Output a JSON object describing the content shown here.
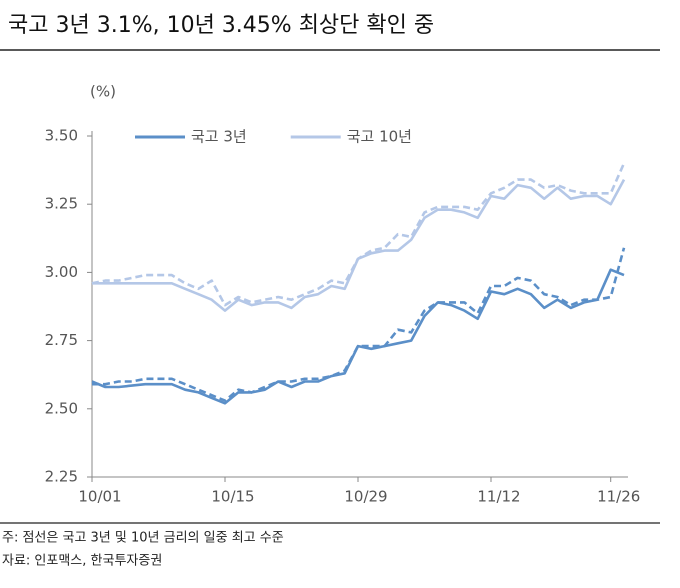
{
  "chart_data": {
    "type": "line",
    "title": "국고 3년 3.1%, 10년 3.45% 최상단 확인 중",
    "y_unit": "(%)",
    "categories": [
      "10/01",
      null,
      null,
      null,
      null,
      null,
      null,
      null,
      null,
      null,
      "10/15",
      null,
      null,
      null,
      null,
      null,
      null,
      null,
      null,
      null,
      "10/29",
      null,
      null,
      null,
      null,
      null,
      null,
      null,
      null,
      null,
      "11/12",
      null,
      null,
      null,
      null,
      null,
      null,
      null,
      null,
      "11/26",
      null
    ],
    "series": [
      {
        "name": "국고 3년",
        "color": "#5b8fc8",
        "dashed": false,
        "values": [
          2.6,
          2.58,
          2.58,
          2.585,
          2.59,
          2.59,
          2.59,
          2.57,
          2.56,
          2.54,
          2.52,
          2.56,
          2.56,
          2.57,
          2.6,
          2.58,
          2.6,
          2.6,
          2.62,
          2.63,
          2.73,
          2.72,
          2.73,
          2.74,
          2.75,
          2.84,
          2.89,
          2.88,
          2.86,
          2.83,
          2.93,
          2.92,
          2.94,
          2.92,
          2.87,
          2.9,
          2.87,
          2.89,
          2.9,
          3.01,
          2.99
        ]
      },
      {
        "name": "국고 10년",
        "color": "#b4c7e7",
        "dashed": false,
        "values": [
          2.96,
          2.96,
          2.96,
          2.96,
          2.96,
          2.96,
          2.96,
          2.94,
          2.92,
          2.9,
          2.86,
          2.9,
          2.88,
          2.89,
          2.89,
          2.87,
          2.91,
          2.92,
          2.95,
          2.94,
          3.05,
          3.07,
          3.08,
          3.08,
          3.12,
          3.2,
          3.23,
          3.23,
          3.22,
          3.2,
          3.28,
          3.27,
          3.32,
          3.31,
          3.27,
          3.31,
          3.27,
          3.28,
          3.28,
          3.25,
          3.34
        ]
      },
      {
        "color": "#5b8fc8",
        "dashed": true,
        "values": [
          2.59,
          2.59,
          2.6,
          2.6,
          2.61,
          2.61,
          2.61,
          2.59,
          2.57,
          2.55,
          2.53,
          2.57,
          2.56,
          2.58,
          2.6,
          2.6,
          2.61,
          2.61,
          2.62,
          2.64,
          2.73,
          2.73,
          2.73,
          2.79,
          2.78,
          2.86,
          2.89,
          2.89,
          2.89,
          2.85,
          2.95,
          2.95,
          2.98,
          2.97,
          2.92,
          2.91,
          2.88,
          2.9,
          2.9,
          2.91,
          3.09
        ]
      },
      {
        "color": "#b4c7e7",
        "dashed": true,
        "values": [
          2.96,
          2.97,
          2.97,
          2.98,
          2.99,
          2.99,
          2.99,
          2.96,
          2.94,
          2.97,
          2.88,
          2.91,
          2.89,
          2.9,
          2.91,
          2.9,
          2.92,
          2.94,
          2.97,
          2.96,
          3.05,
          3.08,
          3.09,
          3.14,
          3.13,
          3.22,
          3.24,
          3.24,
          3.24,
          3.23,
          3.29,
          3.31,
          3.34,
          3.34,
          3.31,
          3.32,
          3.3,
          3.29,
          3.29,
          3.29,
          3.4
        ]
      }
    ],
    "ylim": [
      2.25,
      3.5
    ],
    "yticks": [
      2.25,
      {
        "value": 2.5,
        "label": "2.50"
      },
      2.75,
      {
        "value": 3.0,
        "label": "3.00"
      },
      3.25,
      {
        "value": 3.5,
        "label": "3.50"
      }
    ],
    "notes": [
      "주: 점선은 국고 3년 및 10년 금리의 일중 최고 수준",
      "자료: 인포맥스, 한국투자증권"
    ]
  }
}
